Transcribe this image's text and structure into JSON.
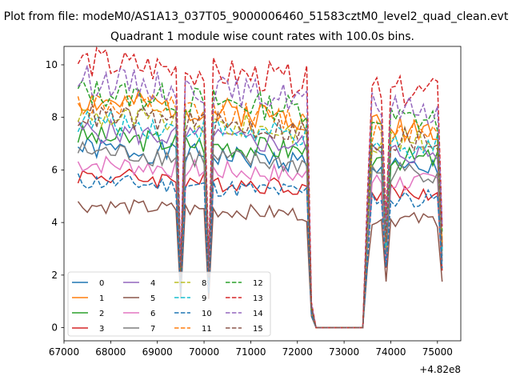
{
  "figure": {
    "suptitle": "Plot from file: modeM0/AS1A13_037T05_9000006460_51583cztM0_level2_quad_clean.evt"
  },
  "chart_data": {
    "type": "line",
    "title": "Quadrant 1 module wise count rates with 100.0s bins.",
    "xlabel": "",
    "ylabel": "",
    "x_offset_text": "+4.82e8",
    "xlim": [
      67000,
      75500
    ],
    "ylim": [
      -0.5,
      10.7
    ],
    "xticks": [
      67000,
      68000,
      69000,
      70000,
      71000,
      72000,
      73000,
      74000,
      75000
    ],
    "yticks": [
      0,
      2,
      4,
      6,
      8,
      10
    ],
    "xtick_labels": [
      "67000",
      "68000",
      "69000",
      "70000",
      "71000",
      "72000",
      "73000",
      "74000",
      "75000"
    ],
    "ytick_labels": [
      "0",
      "2",
      "4",
      "6",
      "8",
      "10"
    ],
    "grid": false,
    "legend_location": "lower-left",
    "legend_columns": 4,
    "x_range": [
      67300,
      75100
    ],
    "anchors": [
      [
        67300,
        1.0
      ],
      [
        69400,
        1.0
      ],
      [
        69500,
        0.25
      ],
      [
        69600,
        1.0
      ],
      [
        70000,
        1.0
      ],
      [
        70100,
        0.25
      ],
      [
        70200,
        1.0
      ],
      [
        72200,
        1.0
      ],
      [
        72300,
        0.1
      ],
      [
        72400,
        0.0
      ],
      [
        73400,
        0.0
      ],
      [
        73500,
        0.55
      ],
      [
        73600,
        1.0
      ],
      [
        73800,
        1.0
      ],
      [
        73900,
        0.45
      ],
      [
        74000,
        1.0
      ],
      [
        75000,
        1.0
      ],
      [
        75100,
        0.45
      ]
    ],
    "series": [
      {
        "name": "0",
        "base": 6.0,
        "color": "#1f77b4",
        "dash": "solid"
      },
      {
        "name": "1",
        "base": 7.6,
        "color": "#ff7f0e",
        "dash": "solid"
      },
      {
        "name": "2",
        "base": 6.4,
        "color": "#2ca02c",
        "dash": "solid"
      },
      {
        "name": "3",
        "base": 5.1,
        "color": "#d62728",
        "dash": "solid"
      },
      {
        "name": "4",
        "base": 6.6,
        "color": "#9467bd",
        "dash": "solid"
      },
      {
        "name": "5",
        "base": 4.1,
        "color": "#8c564b",
        "dash": "solid"
      },
      {
        "name": "6",
        "base": 5.5,
        "color": "#e377c2",
        "dash": "solid"
      },
      {
        "name": "7",
        "base": 5.9,
        "color": "#7f7f7f",
        "dash": "solid"
      },
      {
        "name": "8",
        "base": 7.1,
        "color": "#bcbd22",
        "dash": "dashed"
      },
      {
        "name": "9",
        "base": 6.9,
        "color": "#17becf",
        "dash": "dashed"
      },
      {
        "name": "10",
        "base": 4.9,
        "color": "#1f77b4",
        "dash": "dashed"
      },
      {
        "name": "11",
        "base": 7.5,
        "color": "#ff7f0e",
        "dash": "dashed"
      },
      {
        "name": "12",
        "base": 7.9,
        "color": "#2ca02c",
        "dash": "dashed"
      },
      {
        "name": "13",
        "base": 8.9,
        "color": "#d62728",
        "dash": "dashed"
      },
      {
        "name": "14",
        "base": 8.3,
        "color": "#9467bd",
        "dash": "dashed"
      },
      {
        "name": "15",
        "base": 7.1,
        "color": "#8c564b",
        "dash": "dashed"
      }
    ]
  }
}
